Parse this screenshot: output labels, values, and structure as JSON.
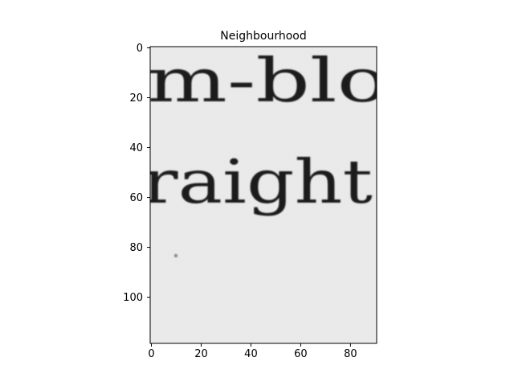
{
  "chart_data": {
    "type": "heatmap",
    "title": "Neighbourhood",
    "xlabel": "",
    "ylabel": "",
    "xlim": [
      0,
      90
    ],
    "ylim": [
      118,
      0
    ],
    "x_ticks": [
      0,
      20,
      40,
      60,
      80
    ],
    "y_ticks": [
      0,
      20,
      40,
      60,
      80,
      100
    ],
    "colormap": "gray",
    "grid": false,
    "legend": "none",
    "image_text": [
      {
        "text": "m-blo",
        "row": 0
      },
      {
        "text": "raight",
        "row": 1
      }
    ],
    "colors": {
      "paper": "#ececec",
      "ink": "#1e1e1e"
    }
  }
}
